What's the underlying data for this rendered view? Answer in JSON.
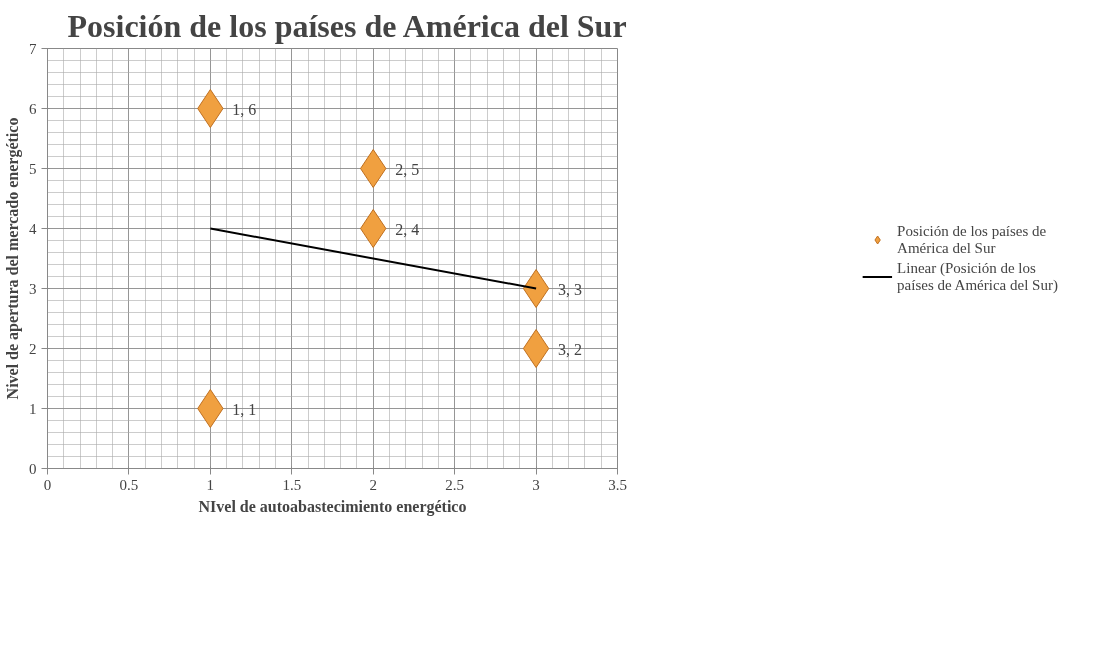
{
  "chart_data": {
    "type": "scatter",
    "title": "Posición de los países de América del Sur",
    "xlabel": "NIvel de autoabastecimiento energético",
    "ylabel": "Nivel de apertura del mercado energético",
    "xlim": [
      0,
      3.5
    ],
    "xticks": [
      0,
      0.5,
      1,
      1.5,
      2,
      2.5,
      3,
      3.5
    ],
    "ylim": [
      0,
      7
    ],
    "yticks": [
      0,
      1,
      2,
      3,
      4,
      5,
      6,
      7
    ],
    "grid": true,
    "legend": "right",
    "marker": "diamond",
    "series": [
      {
        "name": "Posición de los países de América del Sur",
        "color": "#f0a040",
        "x": [
          1,
          2,
          2,
          3,
          3,
          1
        ],
        "values": [
          6,
          5,
          4,
          3,
          2,
          1
        ],
        "value_labels": [
          "1, 6",
          "2, 5",
          "2, 4",
          "3, 3",
          "3, 2",
          "1, 1"
        ]
      },
      {
        "name": "Linear (Posición de los países de América del Sur)",
        "type": "line",
        "color": "#000000",
        "marker": "none",
        "line_style": "solid",
        "x": [
          1,
          3
        ],
        "values": [
          4,
          3
        ]
      }
    ]
  }
}
